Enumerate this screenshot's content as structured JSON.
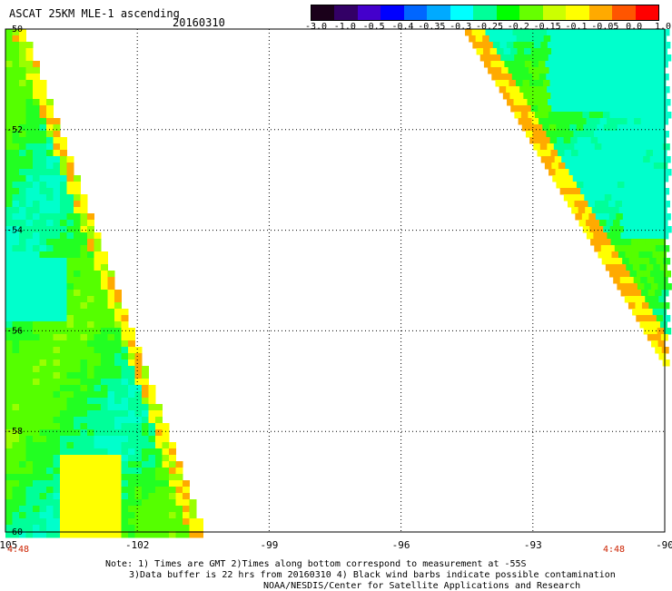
{
  "header": {
    "title": "ASCAT 25KM MLE-1 ascending",
    "date": "20160310"
  },
  "colorbar": {
    "labels": [
      "-3.0",
      "-1.0",
      "-0.5",
      "-0.4",
      "-0.35",
      "-0.3",
      "-0.25",
      "-0.2",
      "-0.15",
      "-0.1",
      "-0.05",
      "0.0",
      "1.0"
    ],
    "colors": [
      "#1a001a",
      "#330066",
      "#4400cc",
      "#0000ff",
      "#0066ff",
      "#00aaff",
      "#00ffff",
      "#00ff99",
      "#00ff00",
      "#66ff00",
      "#ccff00",
      "#ffff00",
      "#ffaa00",
      "#ff5500",
      "#ff0000"
    ]
  },
  "map": {
    "lon_range": [
      -105,
      -90
    ],
    "lat_range": [
      -60,
      -50
    ],
    "lon_ticks": [
      "-105",
      "-102",
      "-99",
      "-96",
      "-93",
      "-90"
    ],
    "lat_ticks": [
      "-50",
      "-52",
      "-54",
      "-56",
      "-58",
      "-60"
    ],
    "times": [
      "4:48",
      "4:48"
    ]
  },
  "notes": {
    "line1": "Note: 1) Times are GMT 2)Times along bottom correspond to measurement at -55S",
    "line2": "3)Data buffer is 22 hrs from 20160310 4) Black wind barbs indicate possible contamination",
    "line3": "NOAA/NESDIS/Center for Satellite Applications and Research"
  }
}
